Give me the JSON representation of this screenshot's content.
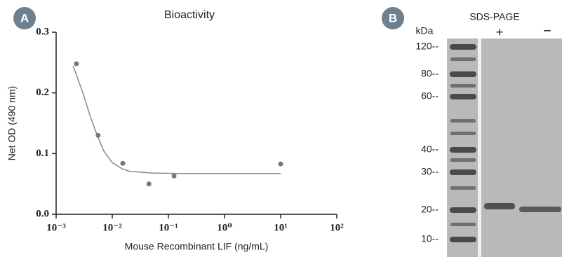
{
  "chart_data": {
    "type": "scatter",
    "title": "Bioactivity",
    "xlabel": "Mouse Recombinant LIF (ng/mL)",
    "ylabel": "Net OD (490 nm)",
    "x": [
      0.0023,
      0.0056,
      0.0154,
      0.045,
      0.126,
      10
    ],
    "values": [
      0.248,
      0.13,
      0.084,
      0.05,
      0.063,
      0.083
    ],
    "color": "#777777",
    "curve": {
      "x": [
        0.002,
        0.003,
        0.004,
        0.005,
        0.007,
        0.01,
        0.015,
        0.02,
        0.05,
        0.2,
        1,
        10
      ],
      "y": [
        0.245,
        0.2,
        0.163,
        0.138,
        0.105,
        0.085,
        0.075,
        0.071,
        0.068,
        0.067,
        0.067,
        0.067
      ],
      "color": "#888888"
    },
    "log_x": true,
    "xlim": [
      0.001,
      100
    ],
    "xticks": [
      {
        "value": 0.001,
        "label": "10⁻³"
      },
      {
        "value": 0.01,
        "label": "10⁻²"
      },
      {
        "value": 0.1,
        "label": "10⁻¹"
      },
      {
        "value": 1,
        "label": "10⁰"
      },
      {
        "value": 10,
        "label": "10¹"
      },
      {
        "value": 100,
        "label": "10²"
      }
    ],
    "ylim": [
      0,
      0.3
    ],
    "yticks": [
      {
        "value": 0,
        "label": "0.0"
      },
      {
        "value": 0.1,
        "label": "0.1"
      },
      {
        "value": 0.2,
        "label": "0.2"
      },
      {
        "value": 0.3,
        "label": "0.3"
      }
    ],
    "grid": false
  },
  "panels": [
    "A",
    "B"
  ],
  "gel": {
    "title": "SDS-PAGE",
    "unit_label": "kDa",
    "lanes": [
      "+",
      "−"
    ],
    "markers": [
      "120--",
      "80--",
      "60--",
      "40--",
      "30--",
      "20--",
      "10--"
    ]
  }
}
